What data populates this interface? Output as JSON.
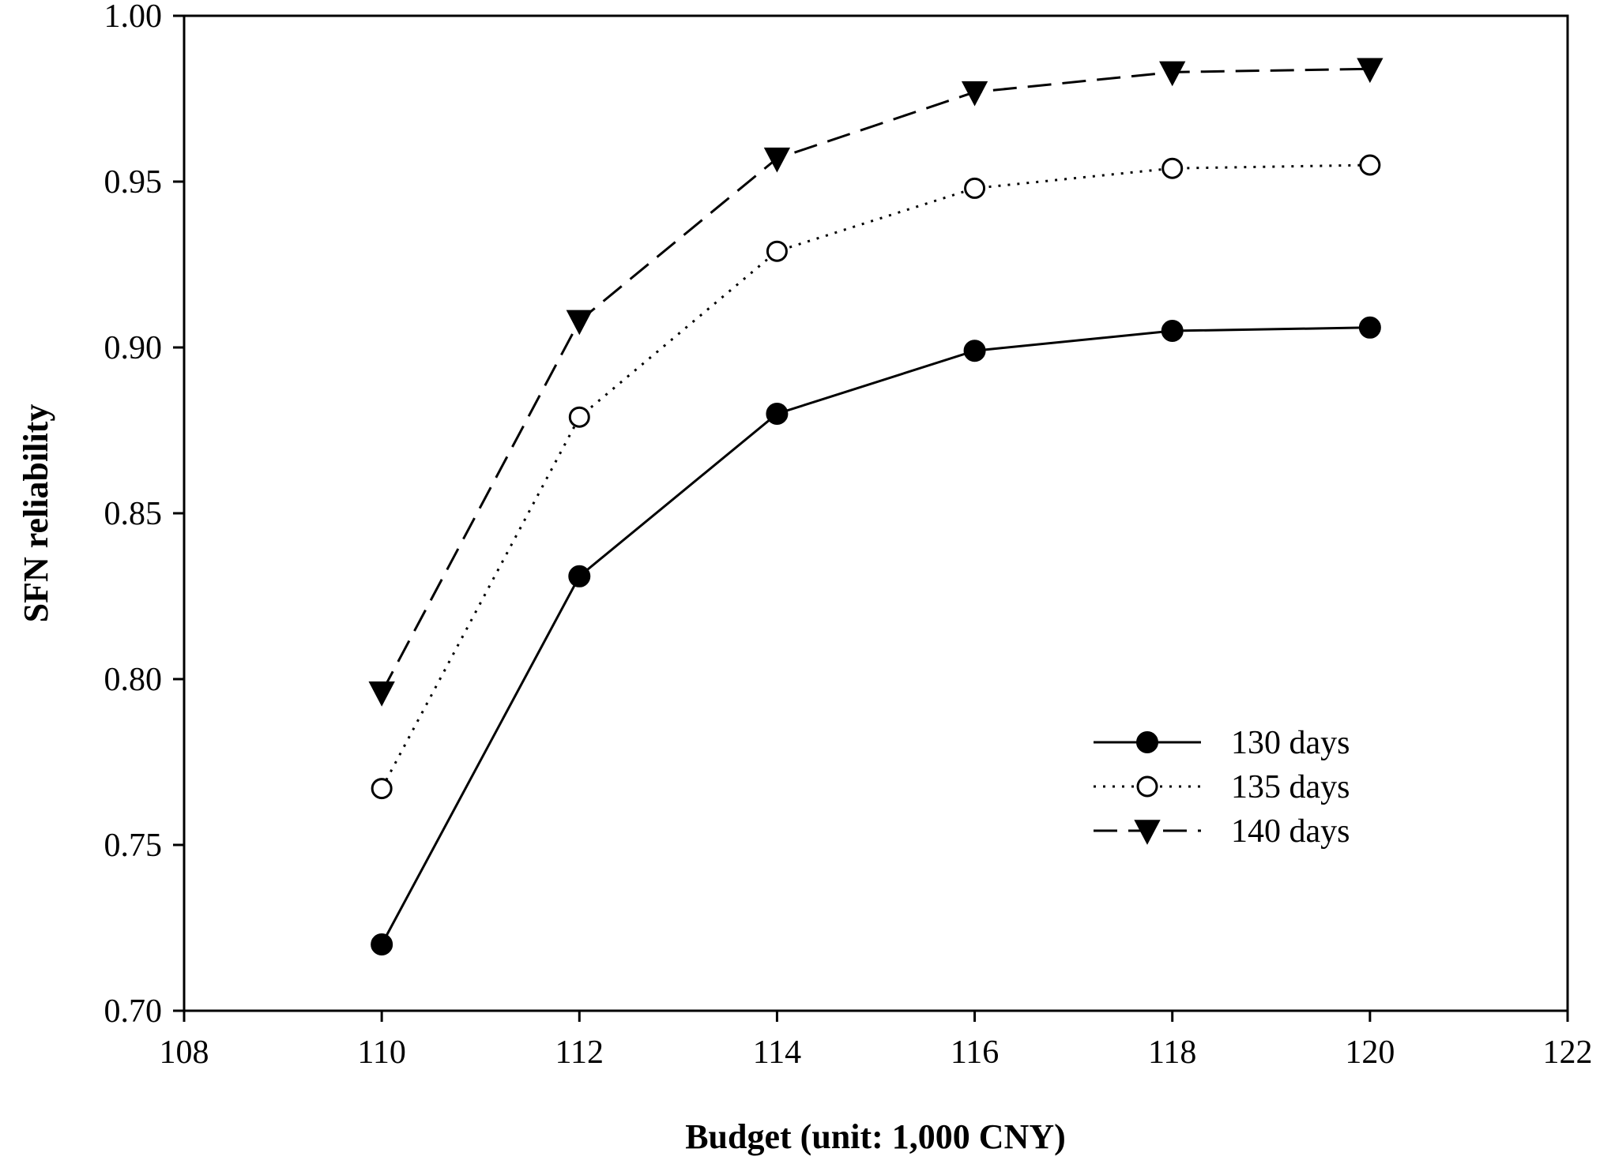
{
  "chart_data": {
    "type": "line",
    "title": "",
    "xlabel": "Budget (unit: 1,000 CNY)",
    "ylabel": "SFN reliability",
    "xlim": [
      108,
      122
    ],
    "ylim": [
      0.7,
      1.0
    ],
    "xticks": [
      108,
      110,
      112,
      114,
      116,
      118,
      120,
      122
    ],
    "xtick_labels": [
      "108",
      "110",
      "112",
      "114",
      "116",
      "118",
      "120",
      "122"
    ],
    "yticks": [
      0.7,
      0.75,
      0.8,
      0.85,
      0.9,
      0.95,
      1.0
    ],
    "ytick_labels": [
      "0.70",
      "0.75",
      "0.80",
      "0.85",
      "0.90",
      "0.95",
      "1.00"
    ],
    "grid": false,
    "legend_position": "lower-right",
    "x": [
      110,
      112,
      114,
      116,
      118,
      120
    ],
    "series": [
      {
        "name": "130 days",
        "marker": "filled-circle",
        "line_style": "solid",
        "values": [
          0.72,
          0.831,
          0.88,
          0.899,
          0.905,
          0.906
        ]
      },
      {
        "name": "135 days",
        "marker": "open-circle",
        "line_style": "dotted",
        "values": [
          0.767,
          0.879,
          0.929,
          0.948,
          0.954,
          0.955
        ]
      },
      {
        "name": "140 days",
        "marker": "filled-triangle-down",
        "line_style": "dashed",
        "values": [
          0.796,
          0.908,
          0.957,
          0.977,
          0.983,
          0.984
        ]
      }
    ]
  }
}
